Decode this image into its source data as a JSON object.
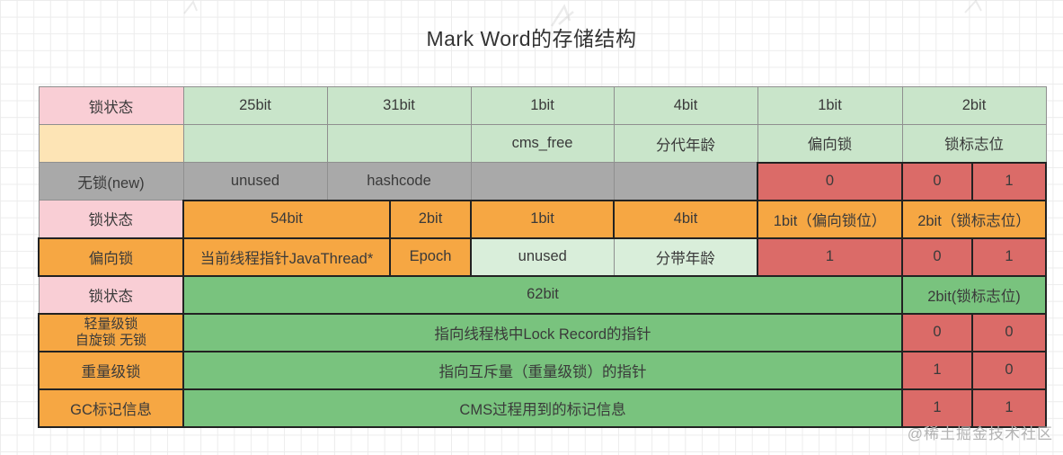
{
  "title": "Mark Word的存储结构",
  "watermark": "@稀土掘金技术社区",
  "colors": {
    "pink": "#f9ced5",
    "cream": "#fde4b5",
    "green": "#c9e5ca",
    "light_green": "#d9eeda",
    "gray": "#a9a9a9",
    "orange": "#f6a743",
    "red": "#db6b68",
    "dark_green": "#79c37e",
    "border_thin": "#8f8f8f",
    "border_thick": "#222222",
    "text": "#3a3a3a",
    "grid_line": "#ececec",
    "watermark_gray": "#b3b3b3"
  },
  "table": {
    "rows": [
      {
        "name": "bits-header",
        "cells": [
          {
            "text": "锁状态",
            "style": "pink",
            "span": 1
          },
          {
            "text": "25bit",
            "style": "green",
            "span": 1
          },
          {
            "text": "31bit",
            "style": "green",
            "span": 2
          },
          {
            "text": "1bit",
            "style": "green",
            "span": 1
          },
          {
            "text": "4bit",
            "style": "green",
            "span": 1
          },
          {
            "text": "1bit",
            "style": "green",
            "span": 1
          },
          {
            "text": "2bit",
            "style": "green",
            "span": 2
          }
        ]
      },
      {
        "name": "field-header",
        "cells": [
          {
            "text": "",
            "style": "cream",
            "span": 1
          },
          {
            "text": "",
            "style": "green",
            "span": 1
          },
          {
            "text": "",
            "style": "green",
            "span": 2
          },
          {
            "text": "cms_free",
            "style": "green",
            "span": 1
          },
          {
            "text": "分代年龄",
            "style": "green",
            "span": 1
          },
          {
            "text": "偏向锁",
            "style": "green",
            "span": 1
          },
          {
            "text": "锁标志位",
            "style": "green",
            "span": 2
          }
        ]
      },
      {
        "name": "no-lock",
        "cells": [
          {
            "text": "无锁(new)",
            "style": "gray",
            "span": 1
          },
          {
            "text": "unused",
            "style": "gray",
            "span": 1
          },
          {
            "text": "hashcode",
            "style": "gray",
            "span": 2
          },
          {
            "text": "",
            "style": "gray",
            "span": 1
          },
          {
            "text": "",
            "style": "gray",
            "span": 1
          },
          {
            "text": "0",
            "style": "red",
            "span": 1
          },
          {
            "text": "0",
            "style": "red",
            "span": 1
          },
          {
            "text": "1",
            "style": "red",
            "span": 1
          }
        ]
      },
      {
        "name": "bits-header-biased",
        "cells": [
          {
            "text": "锁状态",
            "style": "pink",
            "span": 1
          },
          {
            "text": "54bit",
            "style": "orange",
            "span": 2
          },
          {
            "text": "2bit",
            "style": "orange",
            "span": 1
          },
          {
            "text": "1bit",
            "style": "orange",
            "span": 1
          },
          {
            "text": "4bit",
            "style": "orange",
            "span": 1
          },
          {
            "text": "1bit（偏向锁位）",
            "style": "orange",
            "span": 1
          },
          {
            "text": "2bit（锁标志位）",
            "style": "orange",
            "span": 2
          }
        ]
      },
      {
        "name": "biased-lock",
        "cells": [
          {
            "text": "偏向锁",
            "style": "orange",
            "span": 1
          },
          {
            "text": "当前线程指针JavaThread*",
            "style": "orange",
            "span": 2
          },
          {
            "text": "Epoch",
            "style": "orange",
            "span": 1
          },
          {
            "text": "unused",
            "style": "light_green",
            "span": 1
          },
          {
            "text": "分带年龄",
            "style": "light_green",
            "span": 1
          },
          {
            "text": "1",
            "style": "red",
            "span": 1
          },
          {
            "text": "0",
            "style": "red",
            "span": 1
          },
          {
            "text": "1",
            "style": "red",
            "span": 1
          }
        ]
      },
      {
        "name": "bits-header-62",
        "cells": [
          {
            "text": "锁状态",
            "style": "pink",
            "span": 1
          },
          {
            "text": "62bit",
            "style": "dark_green",
            "span": 6
          },
          {
            "text": "2bit(锁标志位)",
            "style": "dark_green",
            "span": 2
          }
        ]
      },
      {
        "name": "lightweight-lock",
        "cells": [
          {
            "text": "轻量级锁\n自旋锁 无锁",
            "style": "orange",
            "span": 1,
            "small": true
          },
          {
            "text": "指向线程栈中Lock Record的指针",
            "style": "dark_green",
            "span": 6
          },
          {
            "text": "0",
            "style": "red",
            "span": 1
          },
          {
            "text": "0",
            "style": "red",
            "span": 1
          }
        ]
      },
      {
        "name": "heavyweight-lock",
        "cells": [
          {
            "text": "重量级锁",
            "style": "orange",
            "span": 1
          },
          {
            "text": "指向互斥量（重量级锁）的指针",
            "style": "dark_green",
            "span": 6
          },
          {
            "text": "1",
            "style": "red",
            "span": 1
          },
          {
            "text": "0",
            "style": "red",
            "span": 1
          }
        ]
      },
      {
        "name": "gc-mark",
        "cells": [
          {
            "text": "GC标记信息",
            "style": "orange",
            "span": 1
          },
          {
            "text": "CMS过程用到的标记信息",
            "style": "dark_green",
            "span": 6
          },
          {
            "text": "1",
            "style": "red",
            "span": 1
          },
          {
            "text": "1",
            "style": "red",
            "span": 1
          }
        ]
      }
    ]
  }
}
